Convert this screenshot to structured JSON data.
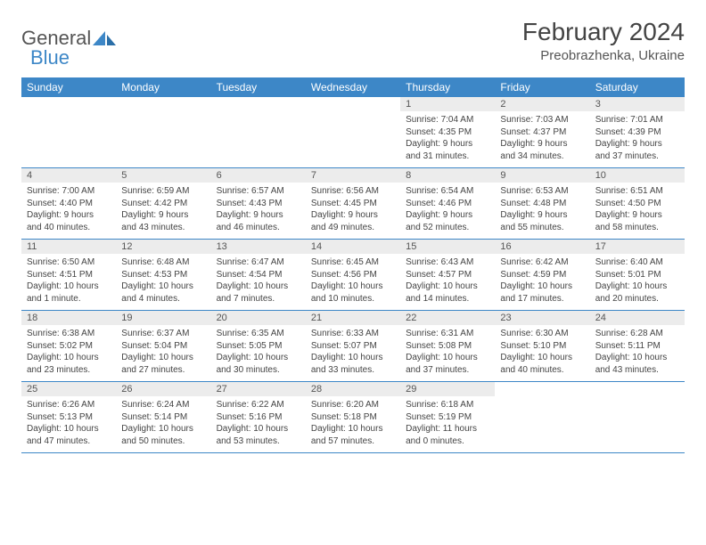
{
  "brand": {
    "name1": "General",
    "name2": "Blue",
    "color": "#3d87c7"
  },
  "title": "February 2024",
  "location": "Preobrazhenka, Ukraine",
  "weekdays": [
    "Sunday",
    "Monday",
    "Tuesday",
    "Wednesday",
    "Thursday",
    "Friday",
    "Saturday"
  ],
  "rows": [
    [
      {
        "n": "",
        "sr": "",
        "ss": "",
        "dl": ""
      },
      {
        "n": "",
        "sr": "",
        "ss": "",
        "dl": ""
      },
      {
        "n": "",
        "sr": "",
        "ss": "",
        "dl": ""
      },
      {
        "n": "",
        "sr": "",
        "ss": "",
        "dl": ""
      },
      {
        "n": "1",
        "sr": "Sunrise: 7:04 AM",
        "ss": "Sunset: 4:35 PM",
        "dl": "Daylight: 9 hours and 31 minutes."
      },
      {
        "n": "2",
        "sr": "Sunrise: 7:03 AM",
        "ss": "Sunset: 4:37 PM",
        "dl": "Daylight: 9 hours and 34 minutes."
      },
      {
        "n": "3",
        "sr": "Sunrise: 7:01 AM",
        "ss": "Sunset: 4:39 PM",
        "dl": "Daylight: 9 hours and 37 minutes."
      }
    ],
    [
      {
        "n": "4",
        "sr": "Sunrise: 7:00 AM",
        "ss": "Sunset: 4:40 PM",
        "dl": "Daylight: 9 hours and 40 minutes."
      },
      {
        "n": "5",
        "sr": "Sunrise: 6:59 AM",
        "ss": "Sunset: 4:42 PM",
        "dl": "Daylight: 9 hours and 43 minutes."
      },
      {
        "n": "6",
        "sr": "Sunrise: 6:57 AM",
        "ss": "Sunset: 4:43 PM",
        "dl": "Daylight: 9 hours and 46 minutes."
      },
      {
        "n": "7",
        "sr": "Sunrise: 6:56 AM",
        "ss": "Sunset: 4:45 PM",
        "dl": "Daylight: 9 hours and 49 minutes."
      },
      {
        "n": "8",
        "sr": "Sunrise: 6:54 AM",
        "ss": "Sunset: 4:46 PM",
        "dl": "Daylight: 9 hours and 52 minutes."
      },
      {
        "n": "9",
        "sr": "Sunrise: 6:53 AM",
        "ss": "Sunset: 4:48 PM",
        "dl": "Daylight: 9 hours and 55 minutes."
      },
      {
        "n": "10",
        "sr": "Sunrise: 6:51 AM",
        "ss": "Sunset: 4:50 PM",
        "dl": "Daylight: 9 hours and 58 minutes."
      }
    ],
    [
      {
        "n": "11",
        "sr": "Sunrise: 6:50 AM",
        "ss": "Sunset: 4:51 PM",
        "dl": "Daylight: 10 hours and 1 minute."
      },
      {
        "n": "12",
        "sr": "Sunrise: 6:48 AM",
        "ss": "Sunset: 4:53 PM",
        "dl": "Daylight: 10 hours and 4 minutes."
      },
      {
        "n": "13",
        "sr": "Sunrise: 6:47 AM",
        "ss": "Sunset: 4:54 PM",
        "dl": "Daylight: 10 hours and 7 minutes."
      },
      {
        "n": "14",
        "sr": "Sunrise: 6:45 AM",
        "ss": "Sunset: 4:56 PM",
        "dl": "Daylight: 10 hours and 10 minutes."
      },
      {
        "n": "15",
        "sr": "Sunrise: 6:43 AM",
        "ss": "Sunset: 4:57 PM",
        "dl": "Daylight: 10 hours and 14 minutes."
      },
      {
        "n": "16",
        "sr": "Sunrise: 6:42 AM",
        "ss": "Sunset: 4:59 PM",
        "dl": "Daylight: 10 hours and 17 minutes."
      },
      {
        "n": "17",
        "sr": "Sunrise: 6:40 AM",
        "ss": "Sunset: 5:01 PM",
        "dl": "Daylight: 10 hours and 20 minutes."
      }
    ],
    [
      {
        "n": "18",
        "sr": "Sunrise: 6:38 AM",
        "ss": "Sunset: 5:02 PM",
        "dl": "Daylight: 10 hours and 23 minutes."
      },
      {
        "n": "19",
        "sr": "Sunrise: 6:37 AM",
        "ss": "Sunset: 5:04 PM",
        "dl": "Daylight: 10 hours and 27 minutes."
      },
      {
        "n": "20",
        "sr": "Sunrise: 6:35 AM",
        "ss": "Sunset: 5:05 PM",
        "dl": "Daylight: 10 hours and 30 minutes."
      },
      {
        "n": "21",
        "sr": "Sunrise: 6:33 AM",
        "ss": "Sunset: 5:07 PM",
        "dl": "Daylight: 10 hours and 33 minutes."
      },
      {
        "n": "22",
        "sr": "Sunrise: 6:31 AM",
        "ss": "Sunset: 5:08 PM",
        "dl": "Daylight: 10 hours and 37 minutes."
      },
      {
        "n": "23",
        "sr": "Sunrise: 6:30 AM",
        "ss": "Sunset: 5:10 PM",
        "dl": "Daylight: 10 hours and 40 minutes."
      },
      {
        "n": "24",
        "sr": "Sunrise: 6:28 AM",
        "ss": "Sunset: 5:11 PM",
        "dl": "Daylight: 10 hours and 43 minutes."
      }
    ],
    [
      {
        "n": "25",
        "sr": "Sunrise: 6:26 AM",
        "ss": "Sunset: 5:13 PM",
        "dl": "Daylight: 10 hours and 47 minutes."
      },
      {
        "n": "26",
        "sr": "Sunrise: 6:24 AM",
        "ss": "Sunset: 5:14 PM",
        "dl": "Daylight: 10 hours and 50 minutes."
      },
      {
        "n": "27",
        "sr": "Sunrise: 6:22 AM",
        "ss": "Sunset: 5:16 PM",
        "dl": "Daylight: 10 hours and 53 minutes."
      },
      {
        "n": "28",
        "sr": "Sunrise: 6:20 AM",
        "ss": "Sunset: 5:18 PM",
        "dl": "Daylight: 10 hours and 57 minutes."
      },
      {
        "n": "29",
        "sr": "Sunrise: 6:18 AM",
        "ss": "Sunset: 5:19 PM",
        "dl": "Daylight: 11 hours and 0 minutes."
      },
      {
        "n": "",
        "sr": "",
        "ss": "",
        "dl": ""
      },
      {
        "n": "",
        "sr": "",
        "ss": "",
        "dl": ""
      }
    ]
  ]
}
